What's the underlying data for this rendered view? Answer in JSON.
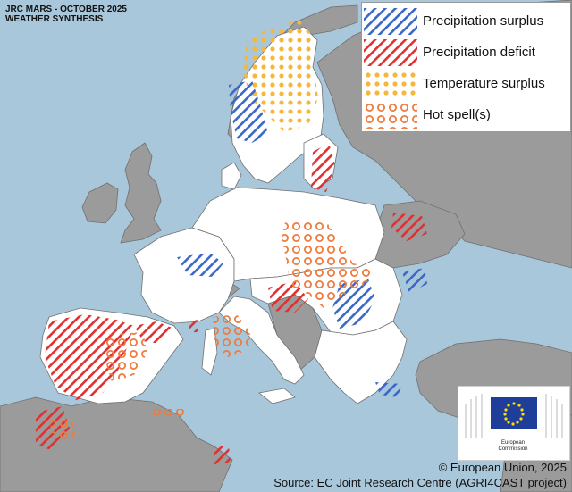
{
  "title": {
    "line1": "JRC MARS - OCTOBER 2025",
    "line2": "WEATHER SYNTHESIS"
  },
  "legend": [
    {
      "key": "precip_surplus",
      "label": "Precipitation surplus",
      "pattern": "blue-diagonal-hatch",
      "color": "#3b67c6"
    },
    {
      "key": "precip_deficit",
      "label": "Precipitation deficit",
      "pattern": "red-diagonal-hatch",
      "color": "#e03030"
    },
    {
      "key": "temp_surplus",
      "label": "Temperature surplus",
      "pattern": "orange-dots",
      "color": "#f6b73c"
    },
    {
      "key": "hot_spell",
      "label": "Hot spell(s)",
      "pattern": "orange-rings",
      "color": "#f07a3c"
    }
  ],
  "colors": {
    "sea": "#a9c7db",
    "studied_land": "#ffffff",
    "other_land": "#9b9b9b",
    "borders": "#6f6f6f"
  },
  "logo": {
    "line1": "European",
    "line2": "Commission"
  },
  "footer": {
    "copyright": "© European Union, 2025",
    "source": "Source: EC Joint Research Centre (AGRI4CAST project)"
  }
}
